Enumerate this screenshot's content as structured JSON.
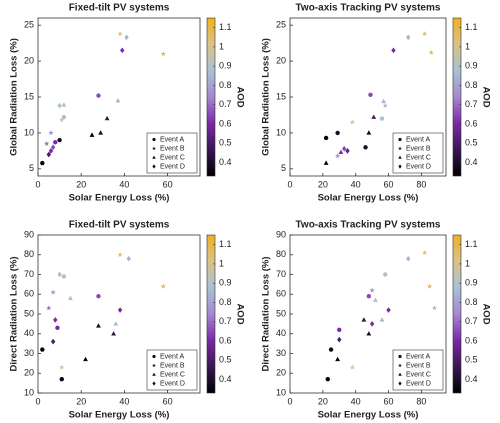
{
  "chart_data": [
    {
      "type": "scatter",
      "title": "Fixed-tilt PV systems",
      "x_label": "Solar Energy Loss (%)",
      "y_label": "Global Radiation Loss (%)",
      "xlim": [
        0,
        75
      ],
      "xticks": [
        0,
        20,
        40,
        60
      ],
      "ylim": [
        4,
        26
      ],
      "yticks": [
        5,
        10,
        15,
        20,
        25
      ],
      "clim": [
        0.33,
        1.15
      ],
      "cticks": [
        0.4,
        0.5,
        0.6,
        0.7,
        0.8,
        0.9,
        1,
        1.1
      ],
      "colorbar_label": "AOD",
      "colormap": [
        "#000000",
        "#3a1655",
        "#7a2aa5",
        "#a488d0",
        "#a8c2d2",
        "#d9c28a",
        "#f2b01e"
      ],
      "legend": "lower right",
      "series": [
        {
          "name": "Event A",
          "marker": "circle",
          "x": [
            2,
            10,
            8,
            28,
            12
          ],
          "values": [
            5.8,
            9,
            8.7,
            15.2,
            12.2
          ],
          "aod": [
            0.35,
            0.4,
            0.6,
            0.65,
            0.9
          ]
        },
        {
          "name": "Event B",
          "marker": "star",
          "x": [
            6,
            11,
            38,
            58,
            4
          ],
          "values": [
            10,
            11.8,
            23.8,
            21,
            8.5
          ],
          "aod": [
            0.75,
            0.95,
            1.05,
            1.1,
            0.7
          ]
        },
        {
          "name": "Event C",
          "marker": "triangle",
          "x": [
            25,
            29,
            32,
            37,
            12
          ],
          "values": [
            9.7,
            10,
            12,
            14.5,
            13.9
          ],
          "aod": [
            0.35,
            0.38,
            0.45,
            0.85,
            0.9
          ]
        },
        {
          "name": "Event D",
          "marker": "diamond",
          "x": [
            5,
            6,
            7,
            39,
            41,
            10
          ],
          "values": [
            7,
            7.5,
            8,
            21.5,
            23.3,
            13.8
          ],
          "aod": [
            0.5,
            0.6,
            0.65,
            0.6,
            0.85,
            0.88
          ]
        }
      ]
    },
    {
      "type": "scatter",
      "title": "Two-axis Tracking PV systems",
      "x_label": "Solar Energy Loss (%)",
      "y_label": "Global Radiation Loss (%)",
      "xlim": [
        0,
        95
      ],
      "xticks": [
        0,
        20,
        40,
        60,
        80
      ],
      "ylim": [
        4,
        26
      ],
      "yticks": [
        5,
        10,
        15,
        20,
        25
      ],
      "clim": [
        0.33,
        1.15
      ],
      "cticks": [
        0.4,
        0.5,
        0.6,
        0.7,
        0.8,
        0.9,
        1,
        1.1
      ],
      "colorbar_label": "AOD",
      "colormap": [
        "#000000",
        "#3a1655",
        "#7a2aa5",
        "#a488d0",
        "#a8c2d2",
        "#d9c28a",
        "#f2b01e"
      ],
      "legend": "lower right",
      "series": [
        {
          "name": "Event A",
          "marker": "circle",
          "x": [
            22,
            29,
            49,
            56,
            46
          ],
          "values": [
            9.3,
            10,
            15.3,
            12,
            8
          ],
          "aod": [
            0.35,
            0.4,
            0.65,
            0.9,
            0.4
          ]
        },
        {
          "name": "Event B",
          "marker": "star",
          "x": [
            38,
            29,
            82,
            86,
            58
          ],
          "values": [
            11.5,
            6.8,
            23.8,
            21.2,
            13.8
          ],
          "aod": [
            1.0,
            0.75,
            1.05,
            1.1,
            0.85
          ]
        },
        {
          "name": "Event C",
          "marker": "triangle",
          "x": [
            22,
            48,
            51,
            57,
            31
          ],
          "values": [
            5.8,
            10,
            12.2,
            14.4,
            7.3
          ],
          "aod": [
            0.35,
            0.38,
            0.5,
            0.85,
            0.6
          ]
        },
        {
          "name": "Event D",
          "marker": "diamond",
          "x": [
            33,
            63,
            72,
            35
          ],
          "values": [
            7.8,
            21.5,
            23.3,
            7.5
          ],
          "aod": [
            0.65,
            0.6,
            0.85,
            0.55
          ]
        }
      ]
    },
    {
      "type": "scatter",
      "title": "Fixed-tilt PV systems",
      "x_label": "Solar Energy Loss (%)",
      "y_label": "Direct Radiation Loss (%)",
      "xlim": [
        0,
        75
      ],
      "xticks": [
        0,
        20,
        40,
        60
      ],
      "ylim": [
        10,
        90
      ],
      "yticks": [
        10,
        20,
        30,
        40,
        50,
        60,
        70,
        80,
        90
      ],
      "clim": [
        0.33,
        1.15
      ],
      "cticks": [
        0.4,
        0.5,
        0.6,
        0.7,
        0.8,
        0.9,
        1,
        1.1
      ],
      "colorbar_label": "AOD",
      "colormap": [
        "#000000",
        "#3a1655",
        "#7a2aa5",
        "#a488d0",
        "#a8c2d2",
        "#d9c28a",
        "#f2b01e"
      ],
      "legend": "lower right",
      "series": [
        {
          "name": "Event A",
          "marker": "circle",
          "x": [
            2,
            11,
            28,
            12,
            9
          ],
          "values": [
            32,
            17,
            59,
            69,
            43
          ],
          "aod": [
            0.35,
            0.35,
            0.65,
            0.9,
            0.6
          ]
        },
        {
          "name": "Event B",
          "marker": "star",
          "x": [
            5,
            11,
            38,
            58,
            7
          ],
          "values": [
            53,
            23,
            80,
            64,
            61
          ],
          "aod": [
            0.7,
            1.0,
            1.05,
            1.1,
            0.75
          ]
        },
        {
          "name": "Event C",
          "marker": "triangle",
          "x": [
            22,
            28,
            35,
            36,
            15
          ],
          "values": [
            27,
            44,
            40,
            45,
            58
          ],
          "aod": [
            0.35,
            0.4,
            0.45,
            0.85,
            0.88
          ]
        },
        {
          "name": "Event D",
          "marker": "diamond",
          "x": [
            7,
            8,
            38,
            42,
            10
          ],
          "values": [
            36,
            47,
            52,
            78,
            70
          ],
          "aod": [
            0.5,
            0.6,
            0.6,
            0.85,
            0.88
          ]
        }
      ]
    },
    {
      "type": "scatter",
      "title": "Two-axis Tracking PV systems",
      "x_label": "Solar Energy Loss (%)",
      "y_label": "Direct Radiation Loss (%)",
      "xlim": [
        0,
        95
      ],
      "xticks": [
        0,
        20,
        40,
        60,
        80
      ],
      "ylim": [
        10,
        90
      ],
      "yticks": [
        10,
        20,
        30,
        40,
        50,
        60,
        70,
        80,
        90
      ],
      "clim": [
        0.33,
        1.15
      ],
      "cticks": [
        0.4,
        0.5,
        0.6,
        0.7,
        0.8,
        0.9,
        1,
        1.1
      ],
      "colorbar_label": "AOD",
      "colormap": [
        "#000000",
        "#3a1655",
        "#7a2aa5",
        "#a488d0",
        "#a8c2d2",
        "#d9c28a",
        "#f2b01e"
      ],
      "legend": "lower right",
      "series": [
        {
          "name": "Event A",
          "marker": "circle",
          "x": [
            23,
            25,
            48,
            58,
            30
          ],
          "values": [
            17,
            32,
            59,
            70,
            42
          ],
          "aod": [
            0.35,
            0.38,
            0.65,
            0.9,
            0.6
          ]
        },
        {
          "name": "Event B",
          "marker": "star",
          "x": [
            38,
            50,
            82,
            85,
            88
          ],
          "values": [
            23,
            62,
            81,
            64,
            53
          ],
          "aod": [
            1.0,
            0.75,
            1.05,
            1.1,
            0.85
          ]
        },
        {
          "name": "Event C",
          "marker": "triangle",
          "x": [
            29,
            48,
            45,
            56,
            52
          ],
          "values": [
            27,
            40,
            47,
            47,
            57
          ],
          "aod": [
            0.35,
            0.4,
            0.45,
            0.85,
            0.88
          ]
        },
        {
          "name": "Event D",
          "marker": "diamond",
          "x": [
            30,
            50,
            60,
            72
          ],
          "values": [
            37,
            45,
            52,
            78
          ],
          "aod": [
            0.5,
            0.6,
            0.6,
            0.85
          ]
        }
      ]
    }
  ]
}
